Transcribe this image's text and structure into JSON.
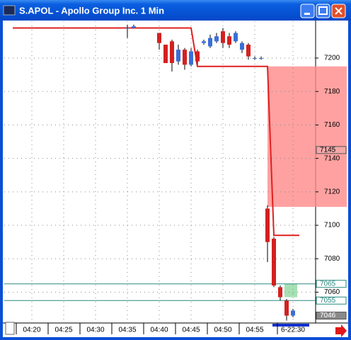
{
  "chart_data": {
    "type": "candlestick",
    "title": "S.APOL - Apollo Group Inc. 1 Min",
    "categories": [
      null,
      null,
      null,
      null,
      "04:20",
      null,
      null,
      null,
      null,
      "04:25",
      null,
      null,
      null,
      null,
      "04:30",
      null,
      null,
      null,
      null,
      "04:35",
      null,
      null,
      null,
      null,
      "04:40",
      null,
      null,
      null,
      null,
      "04:45",
      null,
      null,
      null,
      null,
      "04:50",
      null,
      null,
      null,
      null,
      "04:55",
      null,
      null,
      null,
      null,
      null,
      "6-22:30",
      null,
      null
    ],
    "open": [
      null,
      null,
      null,
      null,
      null,
      null,
      null,
      null,
      null,
      null,
      null,
      null,
      null,
      null,
      null,
      null,
      null,
      null,
      null,
      7218,
      7218,
      null,
      null,
      null,
      7215,
      7208,
      7210,
      7198,
      7205,
      7196,
      7204,
      7209,
      7207,
      7210,
      7216,
      7213,
      7210,
      7205,
      7208,
      7200,
      7200,
      7110,
      7092,
      7063,
      7055,
      7046,
      null,
      null
    ],
    "high": [
      null,
      null,
      null,
      null,
      null,
      null,
      null,
      null,
      null,
      null,
      null,
      null,
      null,
      null,
      null,
      null,
      null,
      null,
      null,
      7220,
      7220,
      null,
      null,
      null,
      7215,
      7208,
      7211,
      7208,
      7206,
      7206,
      7205,
      7211,
      7214,
      7215,
      7218,
      7215,
      7216,
      7210,
      7209,
      7201,
      7201,
      7112,
      7093,
      7064,
      7056,
      7050,
      null,
      null
    ],
    "low": [
      null,
      null,
      null,
      null,
      null,
      null,
      null,
      null,
      null,
      null,
      null,
      null,
      null,
      null,
      null,
      null,
      null,
      null,
      null,
      7212,
      7218,
      null,
      null,
      null,
      7205,
      7197,
      7192,
      7196,
      7193,
      7195,
      7196,
      7208,
      7206,
      7209,
      7206,
      7206,
      7209,
      7203,
      7199,
      7199,
      7199,
      7078,
      7063,
      7055,
      7043,
      7045,
      null,
      null
    ],
    "close": [
      null,
      null,
      null,
      null,
      null,
      null,
      null,
      null,
      null,
      null,
      null,
      null,
      null,
      null,
      null,
      null,
      null,
      null,
      null,
      7218,
      7219,
      null,
      null,
      null,
      7209,
      7197,
      7197,
      7205,
      7196,
      7204,
      7198,
      7210,
      7212,
      7213,
      7209,
      7208,
      7215,
      7209,
      7201,
      7200,
      7200,
      7090,
      7064,
      7057,
      7046,
      7049,
      null,
      null
    ],
    "up_color": "#3a6fd8",
    "down_color": "#d42020",
    "line": {
      "color": "#e02020",
      "values": [
        null,
        7218,
        7218,
        7218,
        7218,
        7218,
        7218,
        7218,
        7218,
        7218,
        7218,
        7218,
        7218,
        7218,
        7218,
        7218,
        7218,
        7218,
        7218,
        7218,
        7218,
        7218,
        7218,
        7218,
        7218,
        7218,
        7218,
        7218,
        7218,
        7218,
        7195,
        7195,
        7195,
        7195,
        7195,
        7195,
        7195,
        7195,
        7195,
        7195,
        7195,
        7195,
        7094,
        7094,
        7094,
        7094,
        7094,
        null
      ]
    },
    "ylim": [
      7042,
      7222
    ],
    "yticks": [
      7060,
      7080,
      7100,
      7120,
      7140,
      7160,
      7180,
      7200
    ],
    "grid": true,
    "zones": [
      {
        "from": 7111,
        "to": 7195,
        "color": "#ff8a8a"
      },
      {
        "from": 7057,
        "to": 7065,
        "color": "#8fd8a0"
      }
    ],
    "levels": [
      {
        "value": 7065,
        "color": "#2a8a80"
      },
      {
        "value": 7055,
        "color": "#2a8a80"
      }
    ],
    "markers": [
      {
        "value": 7145,
        "color": "#f4a8a8"
      },
      {
        "value": 7046,
        "color": "#8a8a8a"
      }
    ]
  }
}
